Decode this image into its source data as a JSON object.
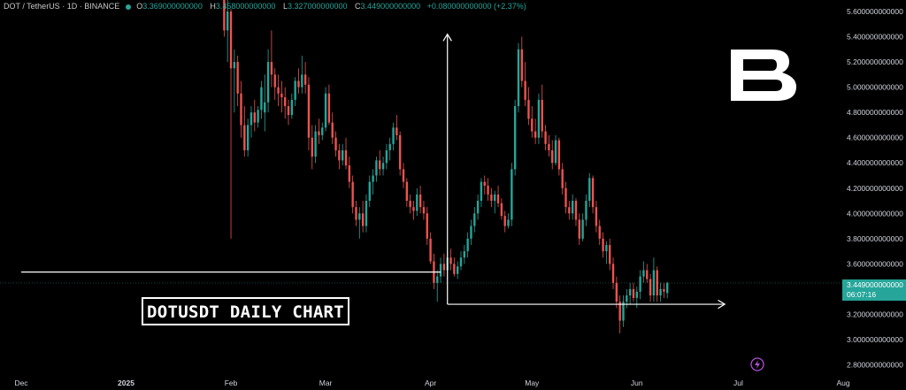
{
  "header": {
    "symbol": "DOT / TetherUS · 1D · BINANCE",
    "open_label": "O",
    "open": "3.369000000000",
    "high_label": "H",
    "high": "3.458000000000",
    "low_label": "L",
    "low": "3.327000000000",
    "close_label": "C",
    "close": "3.449000000000",
    "change": "+0.080000000000 (+2.37%)"
  },
  "annotation": "DOTUSDT DAILY CHART",
  "last_price": {
    "value": "3.449000000000",
    "countdown": "06:07:16"
  },
  "colors": {
    "up": "#26a69a",
    "down": "#ef5350",
    "background": "#000000",
    "axis_text": "#d1d4dc",
    "annotation": "#ffffff",
    "badge": "#26a69a"
  },
  "icons": [
    "brand-logo-icon",
    "lightning-icon"
  ],
  "chart_data": {
    "type": "candlestick",
    "title": "",
    "xlabel": "",
    "ylabel": "",
    "grid": false,
    "ylim": [
      2.7,
      5.7
    ],
    "x_range": [
      "2024-12-01",
      "2025-08-01"
    ],
    "x_ticks": [
      {
        "date": "2024-12-01",
        "label": "Dec"
      },
      {
        "date": "2025-01-01",
        "label": "2025"
      },
      {
        "date": "2025-02-01",
        "label": "Feb"
      },
      {
        "date": "2025-03-01",
        "label": "Mar"
      },
      {
        "date": "2025-04-01",
        "label": "Apr"
      },
      {
        "date": "2025-05-01",
        "label": "May"
      },
      {
        "date": "2025-06-01",
        "label": "Jun"
      },
      {
        "date": "2025-07-01",
        "label": "Jul"
      },
      {
        "date": "2025-08-01",
        "label": "Aug"
      }
    ],
    "y_ticks": [
      "2.800000000000",
      "3.000000000000",
      "3.200000000000",
      "3.400000000000",
      "3.600000000000",
      "3.800000000000",
      "4.000000000000",
      "4.200000000000",
      "4.400000000000",
      "4.600000000000",
      "4.800000000000",
      "5.000000000000",
      "5.200000000000",
      "5.400000000000",
      "5.600000000000"
    ],
    "start_date": "2025-01-30",
    "candles": [
      [
        5.85,
        5.9,
        5.4,
        5.45
      ],
      [
        5.45,
        5.7,
        5.2,
        5.6
      ],
      [
        5.6,
        5.62,
        3.8,
        5.15
      ],
      [
        5.15,
        5.3,
        4.8,
        5.2
      ],
      [
        5.2,
        5.25,
        4.85,
        4.95
      ],
      [
        4.95,
        5.05,
        4.6,
        4.7
      ],
      [
        4.7,
        4.85,
        4.45,
        4.5
      ],
      [
        4.5,
        4.75,
        4.45,
        4.7
      ],
      [
        4.7,
        4.85,
        4.6,
        4.8
      ],
      [
        4.8,
        4.9,
        4.65,
        4.72
      ],
      [
        4.72,
        4.85,
        4.68,
        4.82
      ],
      [
        4.82,
        5.05,
        4.75,
        5.0
      ],
      [
        4.8,
        5.1,
        4.65,
        4.88
      ],
      [
        4.88,
        5.3,
        4.8,
        5.2
      ],
      [
        5.2,
        5.45,
        5.0,
        5.1
      ],
      [
        5.1,
        5.15,
        4.9,
        5.0
      ],
      [
        5.0,
        5.1,
        4.85,
        4.95
      ],
      [
        4.95,
        5.05,
        4.8,
        4.92
      ],
      [
        4.92,
        5.0,
        4.75,
        4.85
      ],
      [
        4.85,
        4.9,
        4.7,
        4.78
      ],
      [
        4.78,
        4.95,
        4.75,
        4.9
      ],
      [
        4.9,
        5.08,
        4.85,
        5.05
      ],
      [
        5.05,
        5.15,
        4.95,
        5.0
      ],
      [
        5.0,
        5.25,
        4.95,
        5.1
      ],
      [
        5.1,
        5.2,
        4.95,
        5.02
      ],
      [
        5.02,
        5.08,
        4.5,
        4.6
      ],
      [
        4.6,
        4.7,
        4.35,
        4.45
      ],
      [
        4.45,
        4.7,
        4.4,
        4.65
      ],
      [
        4.65,
        4.75,
        4.55,
        4.62
      ],
      [
        4.62,
        4.72,
        4.58,
        4.68
      ],
      [
        4.68,
        5.0,
        4.65,
        4.95
      ],
      [
        4.95,
        5.02,
        4.7,
        4.72
      ],
      [
        4.72,
        4.8,
        4.55,
        4.6
      ],
      [
        4.6,
        4.65,
        4.45,
        4.5
      ],
      [
        4.5,
        4.55,
        4.35,
        4.42
      ],
      [
        4.42,
        4.55,
        4.38,
        4.5
      ],
      [
        4.5,
        4.6,
        4.35,
        4.38
      ],
      [
        4.38,
        4.45,
        4.2,
        4.25
      ],
      [
        4.25,
        4.3,
        4.0,
        4.05
      ],
      [
        4.05,
        4.1,
        3.9,
        3.95
      ],
      [
        3.95,
        4.05,
        3.8,
        4.0
      ],
      [
        4.0,
        4.1,
        3.85,
        3.9
      ],
      [
        3.9,
        4.15,
        3.85,
        4.1
      ],
      [
        4.1,
        4.3,
        4.05,
        4.25
      ],
      [
        4.25,
        4.35,
        4.15,
        4.3
      ],
      [
        4.3,
        4.45,
        4.25,
        4.42
      ],
      [
        4.42,
        4.5,
        4.3,
        4.35
      ],
      [
        4.35,
        4.45,
        4.3,
        4.4
      ],
      [
        4.4,
        4.55,
        4.35,
        4.5
      ],
      [
        4.5,
        4.6,
        4.42,
        4.55
      ],
      [
        4.55,
        4.72,
        4.5,
        4.68
      ],
      [
        4.68,
        4.78,
        4.58,
        4.62
      ],
      [
        4.62,
        4.65,
        4.3,
        4.35
      ],
      [
        4.35,
        4.4,
        4.2,
        4.25
      ],
      [
        4.25,
        4.28,
        4.05,
        4.1
      ],
      [
        4.1,
        4.15,
        4.0,
        4.05
      ],
      [
        4.05,
        4.1,
        3.95,
        4.02
      ],
      [
        4.02,
        4.2,
        3.98,
        4.15
      ],
      [
        4.15,
        4.22,
        4.0,
        4.05
      ],
      [
        4.05,
        4.1,
        3.95,
        4.0
      ],
      [
        4.0,
        4.05,
        3.75,
        3.8
      ],
      [
        3.8,
        3.85,
        3.6,
        3.62
      ],
      [
        3.62,
        3.68,
        3.4,
        3.45
      ],
      [
        3.45,
        3.55,
        3.3,
        3.5
      ],
      [
        3.5,
        3.65,
        3.45,
        3.6
      ],
      [
        3.6,
        3.68,
        3.5,
        3.55
      ],
      [
        3.55,
        3.7,
        3.48,
        3.65
      ],
      [
        3.65,
        3.72,
        3.55,
        3.6
      ],
      [
        3.6,
        3.65,
        3.5,
        3.52
      ],
      [
        3.52,
        3.62,
        3.48,
        3.58
      ],
      [
        3.58,
        3.7,
        3.55,
        3.65
      ],
      [
        3.65,
        3.75,
        3.6,
        3.7
      ],
      [
        3.7,
        3.85,
        3.65,
        3.8
      ],
      [
        3.8,
        3.95,
        3.75,
        3.9
      ],
      [
        3.9,
        4.05,
        3.85,
        4.0
      ],
      [
        4.0,
        4.15,
        3.95,
        4.1
      ],
      [
        4.1,
        4.28,
        4.05,
        4.25
      ],
      [
        4.25,
        4.3,
        4.15,
        4.22
      ],
      [
        4.22,
        4.28,
        4.1,
        4.15
      ],
      [
        4.15,
        4.2,
        4.05,
        4.1
      ],
      [
        4.1,
        4.18,
        4.0,
        4.15
      ],
      [
        4.15,
        4.22,
        4.05,
        4.08
      ],
      [
        4.08,
        4.12,
        3.95,
        3.98
      ],
      [
        3.98,
        4.02,
        3.85,
        3.9
      ],
      [
        3.9,
        4.0,
        3.88,
        3.95
      ],
      [
        3.95,
        4.4,
        3.9,
        4.35
      ],
      [
        4.35,
        4.9,
        4.3,
        4.85
      ],
      [
        4.85,
        5.35,
        4.8,
        5.3
      ],
      [
        5.3,
        5.4,
        5.0,
        5.05
      ],
      [
        5.05,
        5.2,
        4.85,
        4.9
      ],
      [
        4.9,
        5.0,
        4.7,
        4.75
      ],
      [
        4.75,
        4.85,
        4.6,
        4.65
      ],
      [
        4.65,
        4.75,
        4.55,
        4.6
      ],
      [
        4.6,
        4.95,
        4.55,
        4.9
      ],
      [
        4.9,
        5.02,
        4.6,
        4.65
      ],
      [
        4.65,
        4.7,
        4.5,
        4.55
      ],
      [
        4.55,
        4.62,
        4.45,
        4.5
      ],
      [
        4.5,
        4.58,
        4.35,
        4.4
      ],
      [
        4.4,
        4.62,
        4.38,
        4.58
      ],
      [
        4.58,
        4.6,
        4.3,
        4.35
      ],
      [
        4.35,
        4.4,
        4.15,
        4.2
      ],
      [
        4.2,
        4.25,
        4.0,
        4.05
      ],
      [
        4.05,
        4.1,
        3.95,
        4.0
      ],
      [
        4.0,
        4.15,
        3.95,
        4.1
      ],
      [
        4.1,
        4.12,
        3.9,
        3.95
      ],
      [
        3.95,
        4.0,
        3.75,
        3.8
      ],
      [
        3.8,
        4.0,
        3.78,
        3.95
      ],
      [
        3.95,
        4.15,
        3.9,
        4.1
      ],
      [
        4.1,
        4.32,
        4.05,
        4.28
      ],
      [
        4.28,
        4.3,
        4.0,
        4.05
      ],
      [
        4.05,
        4.1,
        3.85,
        3.9
      ],
      [
        3.9,
        3.95,
        3.75,
        3.8
      ],
      [
        3.8,
        3.85,
        3.65,
        3.7
      ],
      [
        3.7,
        3.78,
        3.6,
        3.75
      ],
      [
        3.75,
        3.8,
        3.55,
        3.6
      ],
      [
        3.6,
        3.65,
        3.4,
        3.45
      ],
      [
        3.45,
        3.5,
        3.25,
        3.3
      ],
      [
        3.3,
        3.35,
        3.05,
        3.15
      ],
      [
        3.15,
        3.35,
        3.1,
        3.3
      ],
      [
        3.3,
        3.4,
        3.25,
        3.35
      ],
      [
        3.35,
        3.45,
        3.28,
        3.4
      ],
      [
        3.4,
        3.45,
        3.3,
        3.33
      ],
      [
        3.33,
        3.42,
        3.25,
        3.38
      ],
      [
        3.38,
        3.55,
        3.32,
        3.5
      ],
      [
        3.5,
        3.62,
        3.45,
        3.55
      ],
      [
        3.55,
        3.6,
        3.45,
        3.48
      ],
      [
        3.48,
        3.52,
        3.3,
        3.35
      ],
      [
        3.35,
        3.65,
        3.3,
        3.55
      ],
      [
        3.55,
        3.58,
        3.3,
        3.35
      ],
      [
        3.35,
        3.45,
        3.3,
        3.4
      ],
      [
        3.4,
        3.45,
        3.33,
        3.38
      ],
      [
        3.369,
        3.458,
        3.327,
        3.449
      ]
    ],
    "drawings": [
      {
        "kind": "hline",
        "y": 3.535,
        "from": "2024-12-01",
        "to": "2025-04-04"
      },
      {
        "kind": "arrow",
        "from": [
          "2025-04-06",
          3.28
        ],
        "to": [
          "2025-04-06",
          5.42
        ]
      },
      {
        "kind": "arrow",
        "from": [
          "2025-04-06",
          3.28
        ],
        "to": [
          "2025-06-27",
          3.28
        ]
      }
    ]
  }
}
